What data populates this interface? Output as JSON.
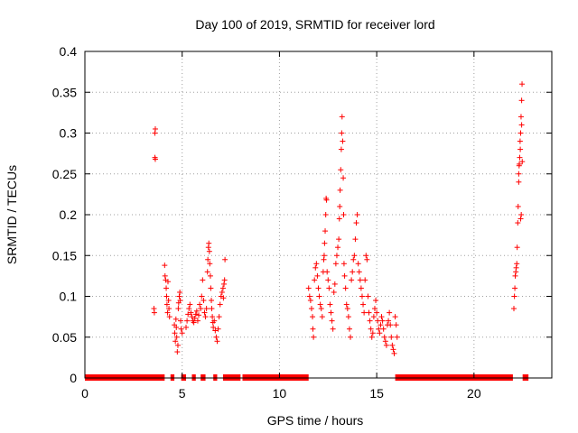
{
  "chart_data": {
    "type": "scatter",
    "title": "Day 100 of 2019, SRMTID for receiver lord",
    "xlabel": "GPS time / hours",
    "ylabel": "SRMTID / TECUs",
    "xlim": [
      0,
      24
    ],
    "ylim": [
      0,
      0.4
    ],
    "xticks": [
      0,
      5,
      10,
      15,
      20
    ],
    "yticks": [
      0,
      0.05,
      0.1,
      0.15,
      0.2,
      0.25,
      0.3,
      0.35,
      0.4
    ],
    "xtick_labels": [
      "0",
      "5",
      "10",
      "15",
      "20"
    ],
    "ytick_labels": [
      "0",
      "0.05",
      "0.1",
      "0.15",
      "0.2",
      "0.25",
      "0.3",
      "0.35",
      "0.4"
    ],
    "grid": true,
    "marker": "+",
    "color": "#ff0000",
    "zero_segments": [
      [
        0.0,
        4.1
      ],
      [
        4.4,
        4.6
      ],
      [
        4.95,
        5.2
      ],
      [
        5.5,
        5.7
      ],
      [
        5.95,
        6.2
      ],
      [
        6.6,
        6.8
      ],
      [
        7.1,
        8.0
      ],
      [
        8.1,
        11.5
      ],
      [
        15.95,
        22.0
      ],
      [
        22.5,
        22.8
      ]
    ],
    "points": [
      [
        3.55,
        0.085
      ],
      [
        3.57,
        0.08
      ],
      [
        3.6,
        0.27
      ],
      [
        3.62,
        0.268
      ],
      [
        3.6,
        0.3
      ],
      [
        3.62,
        0.305
      ],
      [
        4.1,
        0.138
      ],
      [
        4.12,
        0.125
      ],
      [
        4.15,
        0.12
      ],
      [
        4.18,
        0.11
      ],
      [
        4.2,
        0.1
      ],
      [
        4.22,
        0.09
      ],
      [
        4.25,
        0.08
      ],
      [
        4.27,
        0.118
      ],
      [
        4.3,
        0.095
      ],
      [
        4.32,
        0.085
      ],
      [
        4.35,
        0.075
      ],
      [
        4.6,
        0.065
      ],
      [
        4.62,
        0.055
      ],
      [
        4.65,
        0.045
      ],
      [
        4.68,
        0.072
      ],
      [
        4.7,
        0.062
      ],
      [
        4.72,
        0.05
      ],
      [
        4.75,
        0.032
      ],
      [
        4.78,
        0.04
      ],
      [
        4.8,
        0.085
      ],
      [
        4.82,
        0.092
      ],
      [
        4.85,
        0.1
      ],
      [
        4.88,
        0.105
      ],
      [
        4.9,
        0.095
      ],
      [
        4.92,
        0.07
      ],
      [
        4.95,
        0.06
      ],
      [
        5.0,
        0.055
      ],
      [
        5.2,
        0.062
      ],
      [
        5.25,
        0.07
      ],
      [
        5.3,
        0.078
      ],
      [
        5.35,
        0.085
      ],
      [
        5.4,
        0.09
      ],
      [
        5.45,
        0.08
      ],
      [
        5.5,
        0.075
      ],
      [
        5.55,
        0.07
      ],
      [
        5.6,
        0.068
      ],
      [
        5.65,
        0.073
      ],
      [
        5.7,
        0.078
      ],
      [
        5.75,
        0.082
      ],
      [
        5.8,
        0.07
      ],
      [
        5.85,
        0.077
      ],
      [
        5.9,
        0.09
      ],
      [
        5.95,
        0.085
      ],
      [
        6.0,
        0.1
      ],
      [
        6.05,
        0.12
      ],
      [
        6.1,
        0.095
      ],
      [
        6.15,
        0.08
      ],
      [
        6.2,
        0.075
      ],
      [
        6.25,
        0.085
      ],
      [
        6.3,
        0.13
      ],
      [
        6.32,
        0.145
      ],
      [
        6.35,
        0.16
      ],
      [
        6.37,
        0.165
      ],
      [
        6.4,
        0.155
      ],
      [
        6.42,
        0.14
      ],
      [
        6.45,
        0.125
      ],
      [
        6.47,
        0.11
      ],
      [
        6.5,
        0.095
      ],
      [
        6.52,
        0.085
      ],
      [
        6.55,
        0.075
      ],
      [
        6.58,
        0.068
      ],
      [
        6.6,
        0.062
      ],
      [
        6.65,
        0.07
      ],
      [
        6.7,
        0.058
      ],
      [
        6.75,
        0.05
      ],
      [
        6.8,
        0.045
      ],
      [
        6.85,
        0.06
      ],
      [
        6.9,
        0.075
      ],
      [
        6.95,
        0.09
      ],
      [
        7.0,
        0.1
      ],
      [
        7.05,
        0.105
      ],
      [
        7.1,
        0.11
      ],
      [
        7.12,
        0.098
      ],
      [
        7.15,
        0.115
      ],
      [
        7.18,
        0.12
      ],
      [
        7.2,
        0.145
      ],
      [
        11.5,
        0.11
      ],
      [
        11.55,
        0.1
      ],
      [
        11.6,
        0.095
      ],
      [
        11.65,
        0.085
      ],
      [
        11.7,
        0.075
      ],
      [
        11.72,
        0.06
      ],
      [
        11.75,
        0.05
      ],
      [
        11.8,
        0.12
      ],
      [
        11.85,
        0.135
      ],
      [
        11.9,
        0.14
      ],
      [
        11.95,
        0.125
      ],
      [
        12.0,
        0.11
      ],
      [
        12.05,
        0.1
      ],
      [
        12.1,
        0.09
      ],
      [
        12.15,
        0.085
      ],
      [
        12.2,
        0.075
      ],
      [
        12.25,
        0.13
      ],
      [
        12.28,
        0.145
      ],
      [
        12.3,
        0.15
      ],
      [
        12.32,
        0.165
      ],
      [
        12.35,
        0.18
      ],
      [
        12.38,
        0.2
      ],
      [
        12.4,
        0.22
      ],
      [
        12.42,
        0.218
      ],
      [
        12.45,
        0.13
      ],
      [
        12.5,
        0.12
      ],
      [
        12.55,
        0.11
      ],
      [
        12.6,
        0.09
      ],
      [
        12.65,
        0.08
      ],
      [
        12.7,
        0.07
      ],
      [
        12.75,
        0.06
      ],
      [
        12.8,
        0.105
      ],
      [
        12.85,
        0.115
      ],
      [
        12.9,
        0.14
      ],
      [
        12.95,
        0.15
      ],
      [
        13.0,
        0.16
      ],
      [
        13.05,
        0.17
      ],
      [
        13.08,
        0.195
      ],
      [
        13.1,
        0.21
      ],
      [
        13.12,
        0.23
      ],
      [
        13.15,
        0.255
      ],
      [
        13.18,
        0.28
      ],
      [
        13.2,
        0.3
      ],
      [
        13.22,
        0.32
      ],
      [
        13.25,
        0.29
      ],
      [
        13.28,
        0.245
      ],
      [
        13.3,
        0.2
      ],
      [
        13.32,
        0.14
      ],
      [
        13.35,
        0.125
      ],
      [
        13.4,
        0.11
      ],
      [
        13.45,
        0.09
      ],
      [
        13.5,
        0.085
      ],
      [
        13.55,
        0.075
      ],
      [
        13.6,
        0.06
      ],
      [
        13.65,
        0.05
      ],
      [
        13.7,
        0.12
      ],
      [
        13.75,
        0.13
      ],
      [
        13.8,
        0.145
      ],
      [
        13.85,
        0.15
      ],
      [
        13.9,
        0.17
      ],
      [
        13.95,
        0.19
      ],
      [
        14.0,
        0.2
      ],
      [
        14.05,
        0.14
      ],
      [
        14.1,
        0.13
      ],
      [
        14.15,
        0.12
      ],
      [
        14.2,
        0.11
      ],
      [
        14.25,
        0.1
      ],
      [
        14.3,
        0.09
      ],
      [
        14.35,
        0.08
      ],
      [
        14.4,
        0.12
      ],
      [
        14.45,
        0.15
      ],
      [
        14.5,
        0.145
      ],
      [
        14.55,
        0.1
      ],
      [
        14.6,
        0.08
      ],
      [
        14.65,
        0.07
      ],
      [
        14.7,
        0.06
      ],
      [
        14.75,
        0.05
      ],
      [
        14.8,
        0.055
      ],
      [
        14.85,
        0.075
      ],
      [
        14.9,
        0.085
      ],
      [
        14.95,
        0.095
      ],
      [
        15.0,
        0.08
      ],
      [
        15.05,
        0.07
      ],
      [
        15.1,
        0.06
      ],
      [
        15.15,
        0.055
      ],
      [
        15.2,
        0.065
      ],
      [
        15.25,
        0.075
      ],
      [
        15.3,
        0.07
      ],
      [
        15.35,
        0.06
      ],
      [
        15.4,
        0.05
      ],
      [
        15.45,
        0.045
      ],
      [
        15.5,
        0.04
      ],
      [
        15.55,
        0.065
      ],
      [
        15.6,
        0.07
      ],
      [
        15.65,
        0.08
      ],
      [
        15.7,
        0.065
      ],
      [
        15.75,
        0.05
      ],
      [
        15.8,
        0.04
      ],
      [
        15.85,
        0.035
      ],
      [
        15.9,
        0.03
      ],
      [
        15.95,
        0.075
      ],
      [
        16.0,
        0.065
      ],
      [
        16.05,
        0.05
      ],
      [
        22.05,
        0.085
      ],
      [
        22.08,
        0.1
      ],
      [
        22.1,
        0.11
      ],
      [
        22.12,
        0.125
      ],
      [
        22.15,
        0.13
      ],
      [
        22.17,
        0.135
      ],
      [
        22.2,
        0.14
      ],
      [
        22.22,
        0.16
      ],
      [
        22.25,
        0.19
      ],
      [
        22.27,
        0.21
      ],
      [
        22.3,
        0.24
      ],
      [
        22.32,
        0.26
      ],
      [
        22.35,
        0.27
      ],
      [
        22.37,
        0.29
      ],
      [
        22.4,
        0.3
      ],
      [
        22.42,
        0.32
      ],
      [
        22.45,
        0.34
      ],
      [
        22.47,
        0.36
      ],
      [
        22.3,
        0.25
      ],
      [
        22.33,
        0.262
      ],
      [
        22.38,
        0.28
      ],
      [
        22.4,
        0.195
      ],
      [
        22.43,
        0.2
      ],
      [
        22.45,
        0.31
      ],
      [
        22.48,
        0.265
      ]
    ]
  }
}
